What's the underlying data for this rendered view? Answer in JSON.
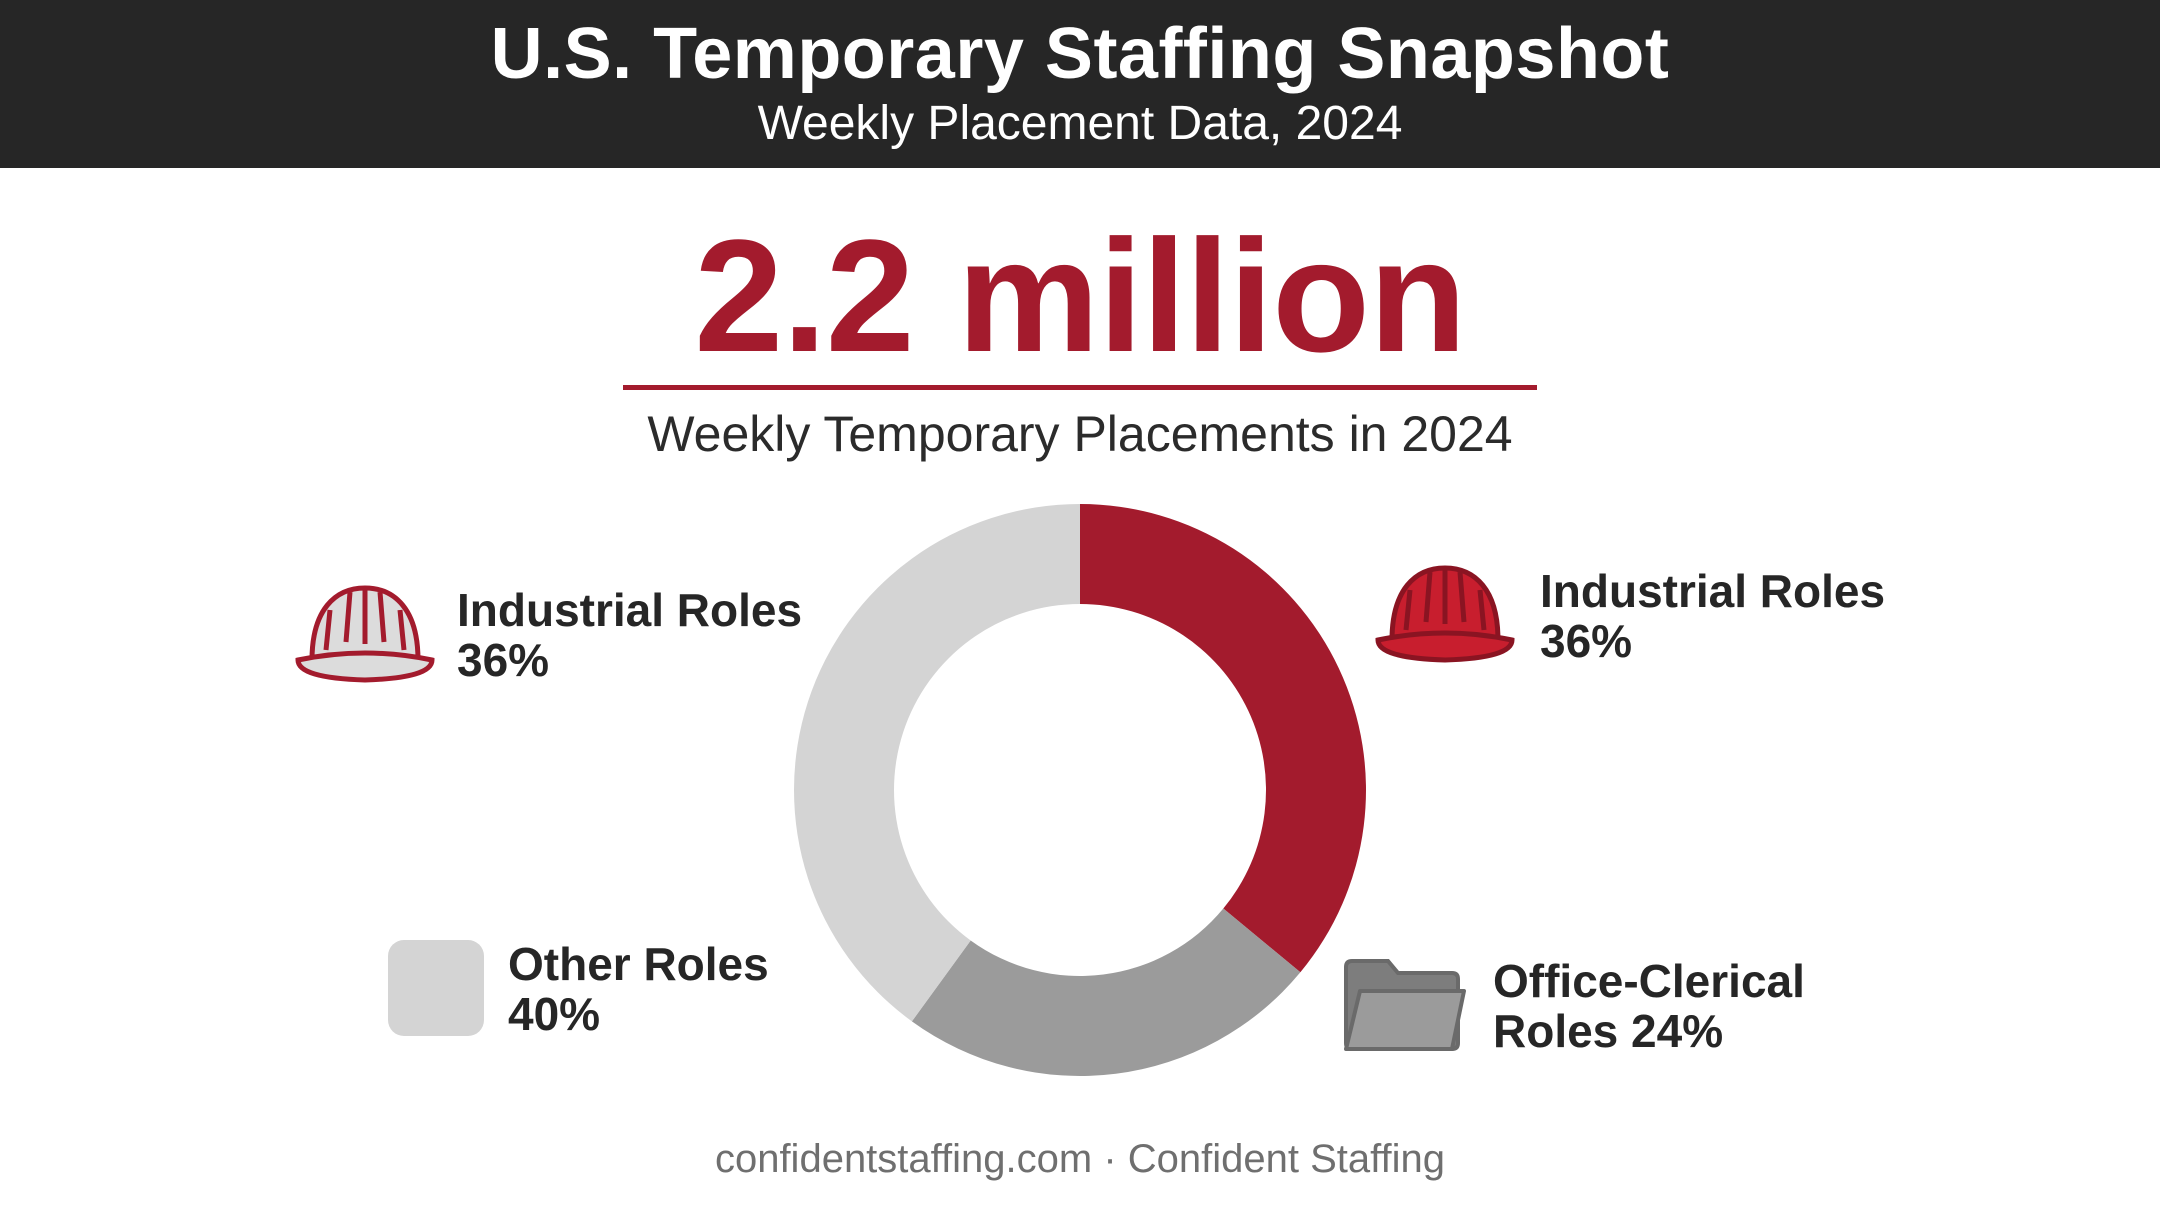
{
  "header": {
    "title": "U.S. Temporary Staffing Snapshot",
    "subtitle": "Weekly Placement Data, 2024"
  },
  "highlight": {
    "value": "2.2 million",
    "caption": "Weekly Temporary Placements in 2024"
  },
  "legend": {
    "industrial_left": {
      "name": "Industrial Roles",
      "pct": "36%",
      "icon": "hard-hat-icon"
    },
    "industrial_right": {
      "name": "Industrial Roles",
      "pct": "36%",
      "icon": "hard-hat-icon"
    },
    "other": {
      "name": "Other Roles",
      "pct": "40%"
    },
    "office": {
      "line1": "Office-Clerical",
      "line2": "Roles 24%",
      "icon": "folder-icon"
    }
  },
  "footer": "confidentstaffing.com · Confident Staffing",
  "colors": {
    "accent": "#a31b2d",
    "industrial": "#a31b2d",
    "office": "#9b9b9b",
    "other": "#d4d4d4",
    "header_bg": "#262626"
  },
  "chart_data": {
    "type": "pie",
    "donut": true,
    "start": "top",
    "direction": "clockwise",
    "slices": [
      {
        "label": "Industrial Roles",
        "value": 36,
        "color": "#a31b2d"
      },
      {
        "label": "Office-Clerical Roles",
        "value": 24,
        "color": "#9b9b9b"
      },
      {
        "label": "Other Roles",
        "value": 40,
        "color": "#d4d4d4"
      }
    ]
  }
}
